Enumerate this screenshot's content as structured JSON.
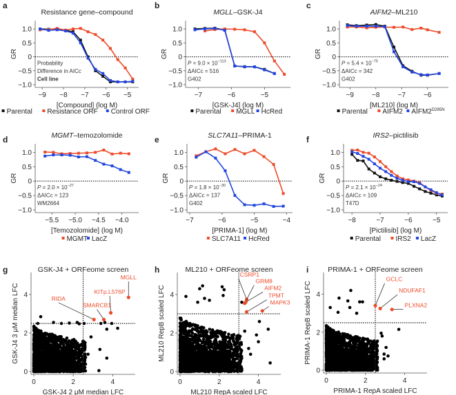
{
  "colors": {
    "black": "#111111",
    "red": "#ee4b2b",
    "blue": "#2346e0",
    "hit": "#ee4b2b"
  },
  "chart_data": [
    {
      "id": "a",
      "panel_label": "a",
      "type": "line",
      "title": "Resistance gene–compound",
      "title_italic": "",
      "xlabel": "[Compound] (log M)",
      "ylabel": "GR",
      "xlim": [
        -9.2,
        -4.6
      ],
      "ylim": [
        -1.0,
        1.2
      ],
      "xticks": [
        -9,
        -8,
        -7,
        -6,
        -5
      ],
      "xtick_labels": [
        "−9",
        "−8",
        "−7",
        "−6",
        "−5"
      ],
      "yticks": [
        -1.0,
        -0.5,
        0,
        0.5,
        1.0
      ],
      "ytick_labels": [
        "−1.0",
        "−0.5",
        "0",
        "0.5",
        "1.0"
      ],
      "annotations": [
        "Probability",
        "Difference in AICc",
        "Cell line"
      ],
      "annotation_bold_last": true,
      "x": [
        -9.1,
        -8.7,
        -8.3,
        -7.9,
        -7.55,
        -7.2,
        -6.85,
        -6.5,
        -6.15,
        -5.8,
        -5.45,
        -5.1,
        -4.75
      ],
      "series": [
        {
          "name": "Parental",
          "color": "black",
          "values": [
            1.0,
            0.99,
            1.0,
            0.95,
            0.9,
            0.6,
            0.0,
            -0.5,
            -0.7,
            -0.9,
            -0.9,
            -0.9,
            -0.9
          ]
        },
        {
          "name": "Resistance ORF",
          "color": "red",
          "values": [
            0.97,
            0.98,
            1.02,
            0.96,
            1.0,
            1.02,
            0.9,
            0.8,
            0.6,
            0.3,
            -0.1,
            -0.4,
            -0.8
          ]
        },
        {
          "name": "Control ORF",
          "color": "blue",
          "values": [
            1.0,
            0.95,
            0.97,
            0.93,
            0.85,
            0.5,
            -0.05,
            -0.45,
            -0.6,
            -0.85,
            -0.9,
            -0.9,
            -0.88
          ]
        }
      ],
      "legend": [
        {
          "label": "Parental",
          "color": "black"
        },
        {
          "label": "Resistance ORF",
          "color": "red"
        },
        {
          "label": "Control ORF",
          "color": "blue"
        }
      ]
    },
    {
      "id": "b",
      "panel_label": "b",
      "type": "line",
      "title": "–GSK-J4",
      "title_italic": "MGLL",
      "xlabel": "[GSK-J4] (log M)",
      "ylabel": "GR",
      "xlim": [
        -7.3,
        -4.3
      ],
      "ylim": [
        -1.0,
        1.2
      ],
      "xticks": [
        -7,
        -6,
        -5
      ],
      "xtick_labels": [
        "−7",
        "−6",
        "−5"
      ],
      "yticks": [
        -1.0,
        -0.5,
        0,
        0.5,
        1.0
      ],
      "ytick_labels": [
        "−1.0",
        "−0.5",
        "0",
        "0.5",
        "1.0"
      ],
      "annotations": [
        "P = 9.0 × 10",
        "ΔAICc = 516",
        "G402"
      ],
      "p_exponent": "−113",
      "x": [
        -7.1,
        -6.8,
        -6.5,
        -6.2,
        -5.9,
        -5.6,
        -5.3,
        -5.0,
        -4.7,
        -4.4
      ],
      "series": [
        {
          "name": "Parental",
          "color": "black",
          "values": [
            1.0,
            1.02,
            1.03,
            0.97,
            -0.33,
            -0.36,
            -0.36,
            -0.45,
            -0.6,
            null
          ]
        },
        {
          "name": "MGLL",
          "color": "red",
          "values": [
            null,
            0.93,
            0.98,
            1.0,
            0.99,
            0.97,
            0.9,
            0.5,
            -0.15,
            -0.63
          ]
        },
        {
          "name": "HcRed",
          "color": "blue",
          "values": [
            0.97,
            1.0,
            1.02,
            0.95,
            -0.33,
            -0.35,
            -0.36,
            -0.47,
            -0.6,
            null
          ]
        }
      ],
      "legend": [
        {
          "label": "Parental",
          "color": "black"
        },
        {
          "label": "MGLL",
          "color": "red"
        },
        {
          "label": "HcRed",
          "color": "blue"
        }
      ]
    },
    {
      "id": "c",
      "panel_label": "c",
      "type": "line",
      "title": "–ML210",
      "title_italic": "AIFM2",
      "xlabel": "[ML210] (log M)",
      "ylabel": "GR",
      "xlim": [
        -9.3,
        -5.3
      ],
      "ylim": [
        -1.0,
        1.2
      ],
      "xticks": [
        -9,
        -8,
        -7,
        -6
      ],
      "xtick_labels": [
        "−9",
        "−8",
        "−7",
        "−6"
      ],
      "yticks": [
        -1.0,
        -0.5,
        0,
        0.5,
        1.0
      ],
      "ytick_labels": [
        "−1.0",
        "−0.5",
        "0",
        "0.5",
        "1.0"
      ],
      "annotations": [
        "P = 5.4 × 10",
        "ΔAICc = 342",
        "G402"
      ],
      "p_exponent": "−75",
      "x": [
        -9.1,
        -8.75,
        -8.35,
        -8.0,
        -7.65,
        -7.3,
        -6.95,
        -6.6,
        -6.25,
        -6.0,
        -5.55
      ],
      "series": [
        {
          "name": "Parental",
          "color": "black",
          "values": [
            1.15,
            1.12,
            1.14,
            1.16,
            1.1,
            0.35,
            -0.32,
            -0.52,
            -0.66,
            -0.66,
            -0.6
          ]
        },
        {
          "name": "AIFM2",
          "color": "red",
          "values": [
            1.07,
            1.07,
            1.04,
            1.06,
            1.07,
            1.06,
            1.07,
            0.98,
            1.03,
            0.97,
            0.88
          ]
        },
        {
          "name": "AIFM2D285N",
          "color": "blue",
          "values": [
            1.12,
            1.1,
            1.1,
            1.1,
            1.08,
            0.18,
            -0.36,
            -0.55,
            -0.64,
            -0.65,
            -0.6
          ]
        }
      ],
      "legend": [
        {
          "label": "Parental",
          "color": "black"
        },
        {
          "label": "AIFM2",
          "color": "red"
        },
        {
          "label": "AIFM2",
          "sup": "D285N",
          "color": "blue"
        }
      ]
    },
    {
      "id": "d",
      "panel_label": "d",
      "type": "line",
      "title": "–temozolomide",
      "title_italic": "MGMT",
      "xlabel": "[Temozolomide] (log M)",
      "ylabel": "GR",
      "xlim": [
        -5.8,
        -3.7
      ],
      "ylim": [
        -1.0,
        1.2
      ],
      "xticks": [
        -5.5,
        -5.0,
        -4.5,
        -4.0
      ],
      "xtick_labels": [
        "−5.5",
        "−5.0",
        "−4.5",
        "−4.0"
      ],
      "yticks": [
        -1.0,
        -0.5,
        0,
        0.5,
        1.0
      ],
      "ytick_labels": [
        "−1.0",
        "−0.5",
        "0",
        "0.5",
        "1.0"
      ],
      "annotations": [
        "P = 2.0 × 10",
        "ΔAICc = 123",
        "WM2664"
      ],
      "p_exponent": "−27",
      "x": [
        -5.65,
        -5.47,
        -5.29,
        -5.11,
        -4.93,
        -4.75,
        -4.57,
        -4.39,
        -4.21,
        -4.03,
        -3.85
      ],
      "series": [
        {
          "name": "MGMT",
          "color": "red",
          "values": [
            1.01,
            1.0,
            0.95,
            0.96,
            0.97,
            0.98,
            1.0,
            1.08,
            0.94,
            0.97,
            0.95
          ]
        },
        {
          "name": "LacZ",
          "color": "blue",
          "values": [
            0.87,
            0.91,
            0.91,
            0.9,
            0.84,
            0.85,
            0.72,
            0.59,
            0.53,
            0.4,
            0.3
          ]
        }
      ],
      "legend": [
        {
          "label": "MGMT",
          "color": "red"
        },
        {
          "label": "LacZ",
          "color": "blue"
        }
      ]
    },
    {
      "id": "e",
      "panel_label": "e",
      "type": "line",
      "title": "–PRIMA-1",
      "title_italic": "SLC7A11",
      "xlabel": "[PRIMA-1] (log M)",
      "ylabel": "GR",
      "xlim": [
        -7.0,
        -3.9
      ],
      "ylim": [
        -1.0,
        1.2
      ],
      "xticks": [
        -7,
        -6,
        -5,
        -4
      ],
      "xtick_labels": [
        "−7",
        "−6",
        "−5",
        "−4"
      ],
      "yticks": [
        -1.0,
        -0.5,
        0,
        0.5,
        1.0
      ],
      "ytick_labels": [
        "−1.0",
        "−0.5",
        "0",
        "0.5",
        "1.0"
      ],
      "annotations": [
        "P = 1.8 × 10",
        "ΔAICc = 137",
        "G402"
      ],
      "p_exponent": "−30",
      "x": [
        -6.8,
        -6.5,
        -6.2,
        -5.9,
        -5.6,
        -5.3,
        -5.0,
        -4.7,
        -4.4,
        -4.1
      ],
      "series": [
        {
          "name": "SLC7A11",
          "color": "red",
          "values": [
            0.88,
            1.02,
            1.12,
            0.95,
            1.1,
            0.95,
            1.07,
            0.85,
            0.58,
            -0.43
          ]
        },
        {
          "name": "HcRed",
          "color": "blue",
          "values": [
            0.83,
            1.02,
            0.8,
            0.36,
            -0.5,
            -0.82,
            -0.84,
            -0.79,
            -0.88,
            -0.87
          ]
        }
      ],
      "legend": [
        {
          "label": "SLC7A11",
          "color": "red"
        },
        {
          "label": "HcRed",
          "color": "blue"
        }
      ]
    },
    {
      "id": "f",
      "panel_label": "f",
      "type": "line",
      "title": "–pictilisib",
      "title_italic": "IRS2",
      "xlabel": "[Pictilisib] (log M)",
      "ylabel": "GR",
      "xlim": [
        -8.2,
        -4.7
      ],
      "ylim": [
        -1.0,
        1.2
      ],
      "xticks": [
        -8,
        -7,
        -6,
        -5
      ],
      "xtick_labels": [
        "−8",
        "−7",
        "−6",
        "−5"
      ],
      "yticks": [
        -1.0,
        -0.5,
        0,
        0.5,
        1.0
      ],
      "ytick_labels": [
        "−1.0",
        "−0.5",
        "0",
        "0.5",
        "1.0"
      ],
      "annotations": [
        "P = 2.1 × 10",
        "ΔAICc = 109",
        "T47D"
      ],
      "p_exponent": "−24",
      "x": [
        -8.0,
        -7.8,
        -7.6,
        -7.4,
        -7.2,
        -7.0,
        -6.8,
        -6.6,
        -6.4,
        -6.2,
        -6.0,
        -5.8,
        -5.6,
        -5.4,
        -5.2,
        -5.0,
        -4.8
      ],
      "series": [
        {
          "name": "Parental",
          "color": "black",
          "values": [
            0.93,
            0.72,
            0.7,
            0.42,
            0.28,
            0.15,
            0.08,
            0.03,
            -0.01,
            -0.05,
            -0.08,
            -0.18,
            -0.27,
            -0.36,
            -0.42,
            -0.48,
            -0.52
          ]
        },
        {
          "name": "IRS2",
          "color": "red",
          "values": [
            1.07,
            1.08,
            1.0,
            0.97,
            0.84,
            0.68,
            0.5,
            0.33,
            0.18,
            0.08,
            0.04,
            0.0,
            -0.05,
            -0.2,
            -0.33,
            -0.42,
            -0.45
          ]
        },
        {
          "name": "LacZ",
          "color": "blue",
          "values": [
            1.02,
            0.96,
            0.86,
            0.76,
            0.6,
            0.45,
            0.33,
            0.2,
            0.1,
            0.03,
            -0.02,
            -0.02,
            -0.08,
            -0.2,
            -0.3,
            -0.4,
            -0.48
          ]
        }
      ],
      "legend": [
        {
          "label": "Parental",
          "color": "black"
        },
        {
          "label": "IRS2",
          "color": "red"
        },
        {
          "label": "LacZ",
          "color": "blue"
        }
      ]
    },
    {
      "id": "g",
      "panel_label": "g",
      "type": "scatter",
      "title": "GSK-J4 + ORFeome screen",
      "xlabel": "GSK-J4 2 μM median LFC",
      "ylabel": "GSK-J4 3 μM median LFC",
      "xlim": [
        0,
        5
      ],
      "ylim": [
        0,
        5
      ],
      "xticks": [
        0,
        2,
        4
      ],
      "yticks": [
        0,
        2,
        4
      ],
      "threshold_x": 2.5,
      "threshold_y": 2.5,
      "hits": [
        {
          "label": "MGLL",
          "x": 4.8,
          "y": 3.85
        },
        {
          "label": "KITp.L576P",
          "x": 3.9,
          "y": 3.05
        },
        {
          "label": "SMARCB1",
          "x": 3.55,
          "y": 2.7
        },
        {
          "label": "RIDA",
          "x": 3.05,
          "y": 2.7
        }
      ],
      "outliers": [
        [
          0.35,
          2.85
        ],
        [
          0.2,
          2.5
        ],
        [
          1.0,
          2.55
        ],
        [
          1.4,
          2.5
        ],
        [
          1.8,
          2.52
        ],
        [
          2.2,
          2.55
        ],
        [
          2.3,
          2.48
        ],
        [
          2.55,
          2.5
        ],
        [
          3.4,
          2.5
        ],
        [
          3.6,
          2.55
        ],
        [
          3.95,
          2.5
        ],
        [
          4.25,
          2.25
        ],
        [
          3.7,
          2.2
        ],
        [
          2.9,
          1.8
        ],
        [
          3.35,
          1.15
        ],
        [
          3.7,
          0.7
        ],
        [
          3.3,
          0.05
        ],
        [
          2.6,
          1.5
        ],
        [
          2.75,
          0.9
        ]
      ]
    },
    {
      "id": "h",
      "panel_label": "h",
      "type": "scatter",
      "title": "ML210 + ORFeome screen",
      "xlabel": "ML210 RepA scaled LFC",
      "ylabel": "ML210 RepB scaled LFC",
      "xlim": [
        0,
        5
      ],
      "ylim": [
        0,
        5
      ],
      "xticks": [
        0,
        2,
        4
      ],
      "yticks": [
        0,
        2,
        4
      ],
      "threshold_x": 3.0,
      "threshold_y": 3.0,
      "hits": [
        {
          "label": "CSRP1",
          "x": 3.4,
          "y": 3.75
        },
        {
          "label": "GRM8",
          "x": 3.3,
          "y": 3.55
        },
        {
          "label": "AIFM2",
          "x": 3.35,
          "y": 3.6
        },
        {
          "label": "TPMT",
          "x": 3.4,
          "y": 3.1
        },
        {
          "label": "MAPK3",
          "x": 4.2,
          "y": 3.15
        }
      ],
      "outliers": [
        [
          1.0,
          4.3
        ],
        [
          1.15,
          4.45
        ],
        [
          2.15,
          4.4
        ],
        [
          2.25,
          4.25
        ],
        [
          0.3,
          3.9
        ],
        [
          1.25,
          3.8
        ],
        [
          2.2,
          3.95
        ],
        [
          0.9,
          3.6
        ],
        [
          1.5,
          3.7
        ],
        [
          3.15,
          3.6
        ],
        [
          4.05,
          2.6
        ],
        [
          4.5,
          2.2
        ],
        [
          3.9,
          1.9
        ],
        [
          4.0,
          1.55
        ],
        [
          4.6,
          0.45
        ],
        [
          3.5,
          1.2
        ],
        [
          3.3,
          2.1
        ],
        [
          3.6,
          0.9
        ]
      ]
    },
    {
      "id": "i",
      "panel_label": "i",
      "type": "scatter",
      "title": "PRIMA-1 + ORFeome screen",
      "xlabel": "PRIMA-1 RepA scaled LFC",
      "ylabel": "PRIMA-1 RepB scaled LFC",
      "xlim": [
        0,
        5
      ],
      "ylim": [
        0,
        5
      ],
      "xticks": [
        0,
        2,
        4
      ],
      "yticks": [
        0,
        2,
        4
      ],
      "threshold_x": 2.5,
      "threshold_y": 2.5,
      "hits": [
        {
          "label": "GCLC",
          "x": 2.5,
          "y": 3.4
        },
        {
          "label": "NDUFAF1",
          "x": 2.75,
          "y": 3.25
        },
        {
          "label": "PLXNA2",
          "x": 3.35,
          "y": 3.2
        }
      ],
      "outliers": [
        [
          1.25,
          4.2
        ],
        [
          0.65,
          3.8
        ],
        [
          1.1,
          3.65
        ],
        [
          1.7,
          3.6
        ],
        [
          1.85,
          3.6
        ],
        [
          0.2,
          3.3
        ],
        [
          1.2,
          3.3
        ],
        [
          0.6,
          3.05
        ],
        [
          1.55,
          3.0
        ],
        [
          3.7,
          2.15
        ],
        [
          2.8,
          1.95
        ],
        [
          2.85,
          1.8
        ],
        [
          3.05,
          1.2
        ],
        [
          2.6,
          1.0
        ],
        [
          2.95,
          0.85
        ],
        [
          3.15,
          0.75
        ],
        [
          2.95,
          0.6
        ]
      ]
    }
  ]
}
